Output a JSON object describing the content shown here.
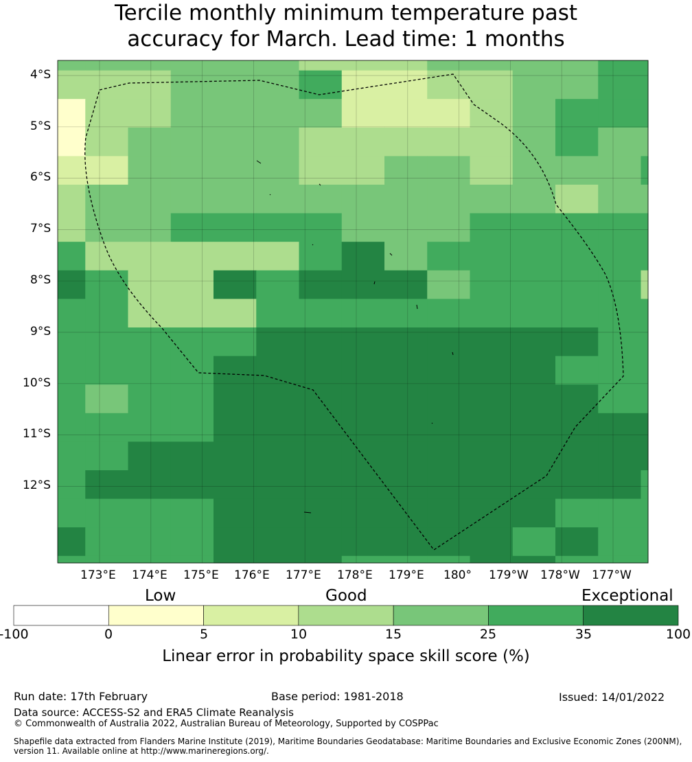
{
  "title": {
    "line1": "Tercile monthly minimum temperature past",
    "line2": "accuracy for March. Lead time: 1 months"
  },
  "map": {
    "lat_labels": [
      "4°S",
      "5°S",
      "6°S",
      "7°S",
      "8°S",
      "9°S",
      "10°S",
      "11°S",
      "12°S"
    ],
    "lon_labels": [
      "173°E",
      "174°E",
      "175°E",
      "176°E",
      "177°E",
      "178°E",
      "179°E",
      "180°",
      "179°W",
      "178°W",
      "177°W"
    ],
    "palette": [
      "#ffffcc",
      "#d9f0a3",
      "#addd8e",
      "#78c679",
      "#41ab5d",
      "#238443"
    ],
    "grid": [
      "3333332223333444",
      "2223334112233444",
      "0223333111234444",
      "0233332222234335",
      "1133332233233345",
      "2333333333332334",
      "2334444333444444",
      "4222224534444444",
      "5422545553444423",
      "4422244444444444",
      "4444455555555444",
      "4444555555554444",
      "4344555555555445",
      "4444555555555554",
      "4455555555555555",
      "4555555555555545",
      "4444555555554445",
      "5444555555545444",
      "4444555444554445",
      "4444555444544444",
      "4444444444444444",
      "4444444444455444",
      "4444442444444444"
    ]
  },
  "colorbar": {
    "categories": [
      "Low",
      "Good",
      "Exceptional"
    ],
    "ticks": [
      "-100",
      "0",
      "5",
      "10",
      "15",
      "25",
      "35",
      "100"
    ],
    "colors": [
      "#ffffff",
      "#ffffcc",
      "#d9f0a3",
      "#addd8e",
      "#78c679",
      "#41ab5d",
      "#238443"
    ],
    "label": "Linear error in probability space skill score (%)"
  },
  "footer": {
    "run_date": "Run date: 17th February",
    "base_period": "Base period: 1981-2018",
    "issued": "Issued: 14/01/2022",
    "data_source": "Data source: ACCESS-S2 and ERA5 Climate Reanalysis",
    "copyright": "© Commonwealth of Australia 2022, Australian Bureau of Meteorology, Supported by COSPPac",
    "shapefile_line1": "Shapefile data extracted from Flanders Marine Institute (2019), Maritime Boundaries Geodatabase: Maritime Boundaries and Exclusive Economic Zones (200NM),",
    "shapefile_line2": "version 11. Available online at http://www.marineregions.org/."
  }
}
